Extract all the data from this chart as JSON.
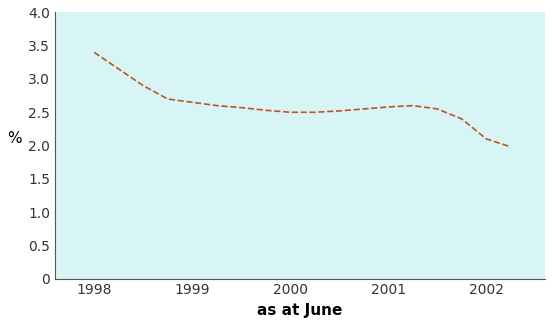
{
  "x": [
    1998.0,
    1998.25,
    1998.5,
    1998.75,
    1999.0,
    1999.25,
    1999.5,
    1999.75,
    2000.0,
    2000.25,
    2000.5,
    2000.75,
    2001.0,
    2001.25,
    2001.5,
    2001.75,
    2002.0,
    2002.25
  ],
  "y": [
    3.4,
    3.15,
    2.9,
    2.7,
    2.65,
    2.6,
    2.57,
    2.53,
    2.5,
    2.5,
    2.52,
    2.55,
    2.58,
    2.6,
    2.55,
    2.4,
    2.1,
    1.98
  ],
  "line_color": "#C0522A",
  "line_style": "--",
  "line_width": 1.2,
  "bg_color": "#D8F5F5",
  "outer_bg": "#FFFFFF",
  "xlabel": "as at June",
  "ylabel": "%",
  "ylim": [
    0,
    4
  ],
  "yticks": [
    0,
    0.5,
    1.0,
    1.5,
    2.0,
    2.5,
    3.0,
    3.5,
    4.0
  ],
  "xticks": [
    1998,
    1999,
    2000,
    2001,
    2002
  ],
  "xlabel_fontsize": 11,
  "ylabel_fontsize": 11,
  "tick_fontsize": 10,
  "xlabel_fontweight": "bold"
}
